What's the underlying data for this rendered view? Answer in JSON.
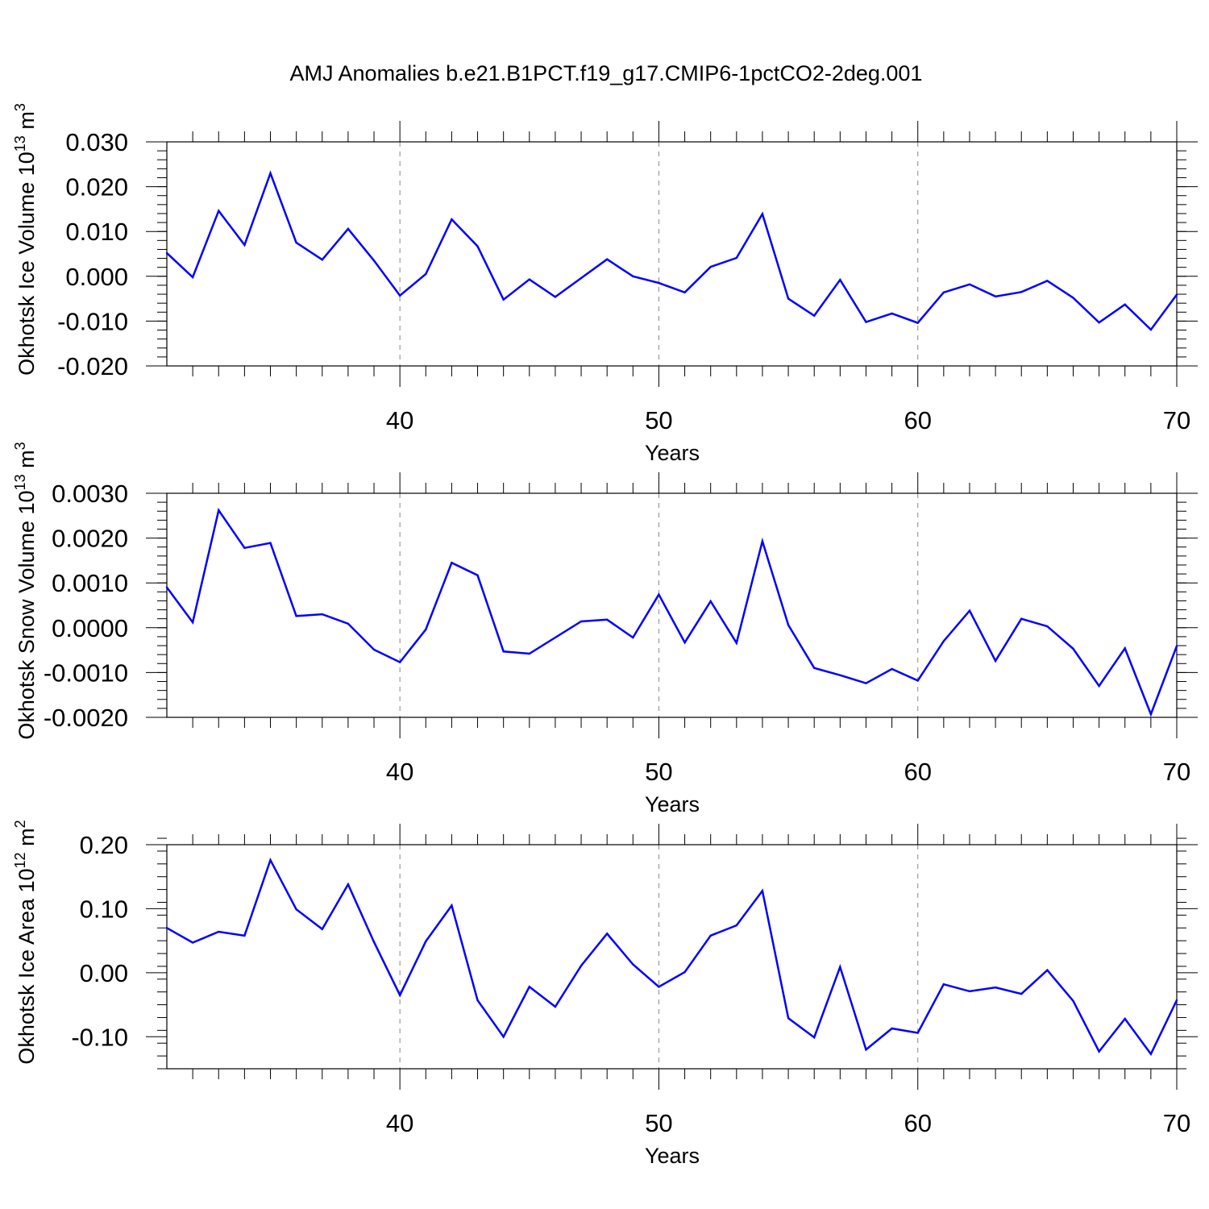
{
  "title": "AMJ Anomalies b.e21.B1PCT.f19_g17.CMIP6-1pctCO2-2deg.001",
  "colors": {
    "line": "#0000ff",
    "axis": "#000000",
    "grid": "#888888"
  },
  "chart_data": [
    {
      "type": "line",
      "ylabel": "Okhotsk Ice Volume 10",
      "ylabel_exp": "13",
      "ylabel_unit": "m",
      "ylabel_unit_exp": "3",
      "xlabel": "Years",
      "xlim": [
        31,
        70
      ],
      "ylim": [
        -0.02,
        0.03
      ],
      "xticks": [
        40,
        50,
        60,
        70
      ],
      "xtick_labels": [
        "40",
        "50",
        "60",
        "70"
      ],
      "yticks": [
        -0.02,
        -0.01,
        0.0,
        0.01,
        0.02,
        0.03
      ],
      "ytick_labels": [
        "-0.020",
        "-0.010",
        "0.000",
        "0.010",
        "0.020",
        "0.030"
      ],
      "yminor": 0.002,
      "grid": "vertical dashed at major x ticks",
      "x": [
        31,
        32,
        33,
        34,
        35,
        36,
        37,
        38,
        39,
        40,
        41,
        42,
        43,
        44,
        45,
        46,
        47,
        48,
        49,
        50,
        51,
        52,
        53,
        54,
        55,
        56,
        57,
        58,
        59,
        60,
        61,
        62,
        63,
        64,
        65,
        66,
        67,
        68,
        69,
        70
      ],
      "values": [
        0.0052,
        -0.0002,
        0.0146,
        0.007,
        0.023,
        0.0075,
        0.0037,
        0.0106,
        0.0035,
        -0.0043,
        0.0005,
        0.0127,
        0.0067,
        -0.0052,
        -0.0007,
        -0.0046,
        -0.0004,
        0.0038,
        0.0,
        -0.0015,
        -0.0036,
        0.0021,
        0.0041,
        0.0139,
        -0.005,
        -0.0088,
        -0.0008,
        -0.0102,
        -0.0083,
        -0.0104,
        -0.0036,
        -0.0018,
        -0.0045,
        -0.0035,
        -0.001,
        -0.0048,
        -0.0103,
        -0.0063,
        -0.0119,
        -0.0041
      ]
    },
    {
      "type": "line",
      "ylabel": "Okhotsk Snow Volume 10",
      "ylabel_exp": "13",
      "ylabel_unit": "m",
      "ylabel_unit_exp": "3",
      "xlabel": "Years",
      "xlim": [
        31,
        70
      ],
      "ylim": [
        -0.002,
        0.003
      ],
      "xticks": [
        40,
        50,
        60,
        70
      ],
      "xtick_labels": [
        "40",
        "50",
        "60",
        "70"
      ],
      "yticks": [
        -0.002,
        -0.001,
        0.0,
        0.001,
        0.002,
        0.003
      ],
      "ytick_labels": [
        "-0.0020",
        "-0.0010",
        "0.0000",
        "0.0010",
        "0.0020",
        "0.0030"
      ],
      "yminor": 0.0002,
      "grid": "vertical dashed at major x ticks",
      "x": [
        31,
        32,
        33,
        34,
        35,
        36,
        37,
        38,
        39,
        40,
        41,
        42,
        43,
        44,
        45,
        46,
        47,
        48,
        49,
        50,
        51,
        52,
        53,
        54,
        55,
        56,
        57,
        58,
        59,
        60,
        61,
        62,
        63,
        64,
        65,
        66,
        67,
        68,
        69,
        70
      ],
      "values": [
        0.0009,
        0.00012,
        0.00262,
        0.00178,
        0.00189,
        0.00026,
        0.0003,
        9e-05,
        -0.00049,
        -0.00077,
        -4e-05,
        0.00145,
        0.00117,
        -0.00053,
        -0.00058,
        -0.00022,
        0.00014,
        0.00018,
        -0.00022,
        0.00074,
        -0.00033,
        0.00059,
        -0.00034,
        0.00193,
        6e-05,
        -0.0009,
        -0.00106,
        -0.00124,
        -0.00092,
        -0.00118,
        -0.0003,
        0.00038,
        -0.00074,
        0.0002,
        3e-05,
        -0.00047,
        -0.0013,
        -0.00046,
        -0.00193,
        -0.00041
      ]
    },
    {
      "type": "line",
      "ylabel": "Okhotsk Ice Area 10",
      "ylabel_exp": "12",
      "ylabel_unit": "m",
      "ylabel_unit_exp": "2",
      "xlabel": "Years",
      "xlim": [
        31,
        70
      ],
      "ylim": [
        -0.15,
        0.2
      ],
      "xticks": [
        40,
        50,
        60,
        70
      ],
      "xtick_labels": [
        "40",
        "50",
        "60",
        "70"
      ],
      "yticks": [
        -0.1,
        0.0,
        0.1,
        0.2
      ],
      "ytick_labels": [
        "-0.10",
        "0.00",
        "0.10",
        "0.20"
      ],
      "yminor": 0.02,
      "grid": "vertical dashed at major x ticks",
      "x": [
        31,
        32,
        33,
        34,
        35,
        36,
        37,
        38,
        39,
        40,
        41,
        42,
        43,
        44,
        45,
        46,
        47,
        48,
        49,
        50,
        51,
        52,
        53,
        54,
        55,
        56,
        57,
        58,
        59,
        60,
        61,
        62,
        63,
        64,
        65,
        66,
        67,
        68,
        69,
        70
      ],
      "values": [
        0.07,
        0.047,
        0.064,
        0.058,
        0.176,
        0.099,
        0.068,
        0.138,
        0.048,
        -0.035,
        0.049,
        0.105,
        -0.043,
        -0.1,
        -0.022,
        -0.053,
        0.011,
        0.061,
        0.013,
        -0.022,
        0.001,
        0.058,
        0.074,
        0.128,
        -0.071,
        -0.101,
        0.009,
        -0.12,
        -0.087,
        -0.094,
        -0.018,
        -0.029,
        -0.023,
        -0.033,
        0.004,
        -0.044,
        -0.123,
        -0.072,
        -0.127,
        -0.043
      ]
    }
  ]
}
